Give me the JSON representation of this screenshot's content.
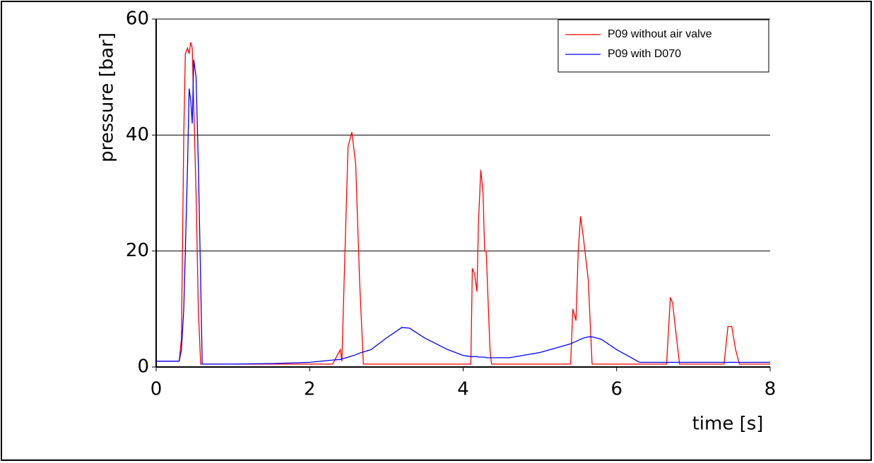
{
  "chart_data": {
    "type": "line",
    "xlabel": "time [s]",
    "ylabel": "pressure [bar]",
    "x": [
      0,
      0.3,
      0.33,
      0.36,
      0.38,
      0.41,
      0.43,
      0.45,
      0.47,
      0.49,
      0.52,
      0.55,
      0.58,
      0.6,
      0.62,
      1.0,
      1.5,
      2.0,
      2.3,
      2.4,
      2.42,
      2.45,
      2.5,
      2.55,
      2.6,
      2.65,
      2.7,
      2.8,
      3.0,
      3.2,
      3.3,
      3.5,
      3.8,
      4.0,
      4.1,
      4.12,
      4.15,
      4.18,
      4.2,
      4.23,
      4.26,
      4.28,
      4.3,
      4.35,
      4.37,
      4.6,
      5.0,
      5.4,
      5.43,
      5.47,
      5.5,
      5.53,
      5.57,
      5.6,
      5.63,
      5.68,
      5.8,
      6.0,
      6.3,
      6.65,
      6.7,
      6.73,
      6.78,
      6.82,
      7.4,
      7.45,
      7.5,
      7.55,
      7.6,
      8
    ],
    "series": [
      {
        "name": "P09 without air valve",
        "color": "#ff0000",
        "values": [
          1,
          1,
          5,
          40,
          54,
          55,
          54,
          56,
          55,
          45,
          30,
          10,
          0.5,
          0.5,
          0.5,
          0.5,
          0.5,
          0.5,
          0.5,
          3,
          1,
          15,
          38,
          40.5,
          35,
          15,
          0.5,
          0.5,
          0.5,
          0.5,
          0.5,
          0.5,
          0.5,
          0.5,
          0.5,
          17,
          16,
          13,
          25,
          34,
          30,
          20,
          20,
          3,
          0.5,
          0.5,
          0.5,
          0.5,
          10,
          8,
          20,
          26,
          22,
          18.5,
          15,
          0.5,
          0.5,
          0.5,
          0.5,
          0.5,
          12,
          11,
          5,
          0.5,
          0.5,
          7,
          7,
          3,
          0.5,
          0.5
        ]
      },
      {
        "name": "P09 with D070",
        "color": "#0000ff",
        "values": [
          1,
          1,
          3,
          10,
          20,
          35,
          48,
          46,
          42,
          53,
          50,
          35,
          15,
          0.5,
          0.5,
          0.5,
          0.6,
          0.8,
          1.2,
          1.3,
          1.4,
          1.5,
          1.7,
          1.9,
          2.1,
          2.4,
          2.6,
          3,
          5,
          6.8,
          6.7,
          5,
          3,
          2,
          1.8,
          1.8,
          1.8,
          1.8,
          1.7,
          1.7,
          1.7,
          1.7,
          1.6,
          1.6,
          1.6,
          1.6,
          2.5,
          4,
          4.2,
          4.4,
          4.6,
          4.8,
          5,
          5.1,
          5.2,
          5.2,
          4.8,
          3,
          0.8,
          0.8,
          0.8,
          0.8,
          0.8,
          0.8,
          0.8,
          0.8,
          0.8,
          0.8,
          0.8,
          0.8
        ]
      }
    ],
    "xlim": [
      0,
      8
    ],
    "xticks": [
      0,
      2,
      4,
      6,
      8
    ],
    "ylim": [
      0,
      60
    ],
    "yticks": [
      0,
      20,
      40,
      60
    ],
    "grid": true,
    "legend": "upper right"
  }
}
